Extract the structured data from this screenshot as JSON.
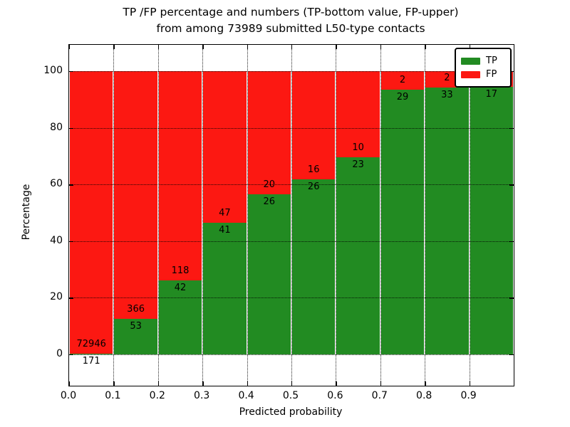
{
  "title": {
    "line1": "TP /FP percentage and numbers (TP-bottom value, FP-upper)",
    "line2": "from among 73989 submitted L50-type contacts"
  },
  "axes": {
    "xlabel": "Predicted probability",
    "ylabel": "Percentage",
    "xtick_labels": [
      "0.0",
      "0.1",
      "0.2",
      "0.3",
      "0.4",
      "0.5",
      "0.6",
      "0.7",
      "0.8",
      "0.9"
    ],
    "xtick_values": [
      0.0,
      0.1,
      0.2,
      0.3,
      0.4,
      0.5,
      0.6,
      0.7,
      0.8,
      0.9
    ],
    "ytick_labels": [
      "0",
      "20",
      "40",
      "60",
      "80",
      "100"
    ],
    "ytick_values": [
      0,
      20,
      40,
      60,
      80,
      100
    ],
    "xlim": [
      0.0,
      1.0
    ],
    "grid": "dotted"
  },
  "legend": {
    "position": "upper-right",
    "items": [
      {
        "label": "TP",
        "color": "#228b22"
      },
      {
        "label": "FP",
        "color": "#fc1812"
      }
    ]
  },
  "chart_data": {
    "type": "bar",
    "stacked": true,
    "title": "TP /FP percentage and numbers (TP-bottom value, FP-upper) from among 73989 submitted L50-type contacts",
    "xlabel": "Predicted probability",
    "ylabel": "Percentage",
    "ylim": [
      0,
      100
    ],
    "categories": [
      "0.0-0.1",
      "0.1-0.2",
      "0.2-0.3",
      "0.3-0.4",
      "0.4-0.5",
      "0.5-0.6",
      "0.6-0.7",
      "0.7-0.8",
      "0.8-0.9",
      "0.9-1.0"
    ],
    "bin_edges": [
      0.0,
      0.1,
      0.2,
      0.3,
      0.4,
      0.5,
      0.6,
      0.7,
      0.8,
      0.9,
      1.0
    ],
    "series": [
      {
        "name": "TP",
        "color": "#228b22",
        "counts": [
          171,
          53,
          42,
          41,
          26,
          26,
          23,
          29,
          33,
          17
        ]
      },
      {
        "name": "FP",
        "color": "#fc1812",
        "counts": [
          72946,
          366,
          118,
          47,
          20,
          16,
          10,
          2,
          2,
          null
        ]
      }
    ],
    "tp_percent": [
      0.23,
      12.65,
      26.25,
      46.59,
      56.52,
      61.9,
      69.7,
      93.55,
      94.29,
      94.4
    ],
    "note": "FP count label of last bar is hidden behind the legend box"
  }
}
